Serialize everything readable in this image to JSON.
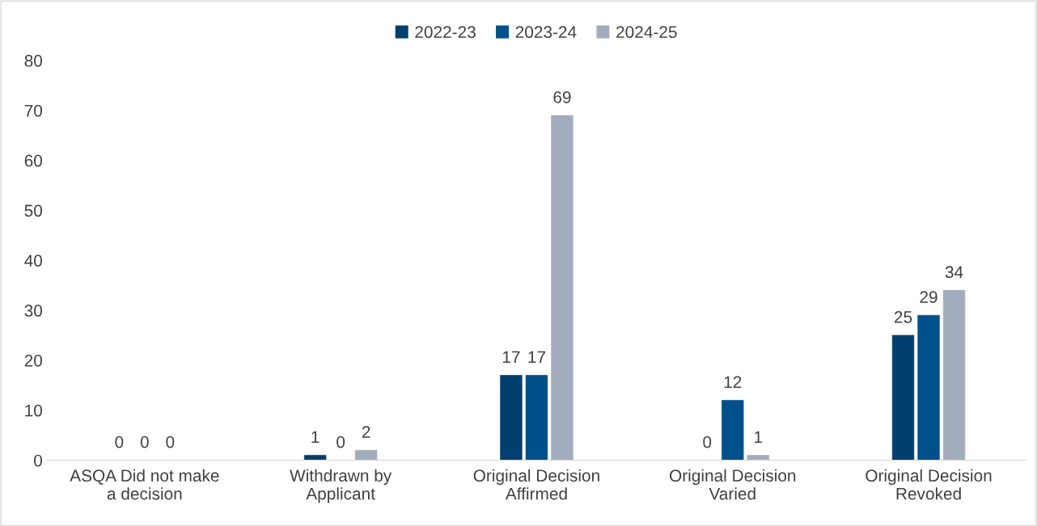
{
  "chart_data": {
    "type": "bar",
    "categories": [
      "ASQA Did not make\na decision",
      "Withdrawn by\nApplicant",
      "Original Decision\nAffirmed",
      "Original Decision\nVaried",
      "Original Decision\nRevoked"
    ],
    "series": [
      {
        "name": "2022-23",
        "color": "#003f6e",
        "values": [
          0,
          1,
          17,
          0,
          25
        ]
      },
      {
        "name": "2023-24",
        "color": "#005089",
        "values": [
          0,
          0,
          17,
          12,
          29
        ]
      },
      {
        "name": "2024-25",
        "color": "#a2acbd",
        "values": [
          0,
          2,
          69,
          1,
          34
        ]
      }
    ],
    "ylim": [
      0,
      80
    ],
    "yticks": [
      0,
      10,
      20,
      30,
      40,
      50,
      60,
      70,
      80
    ],
    "data_labels": true,
    "legend": "top",
    "grid": false
  }
}
